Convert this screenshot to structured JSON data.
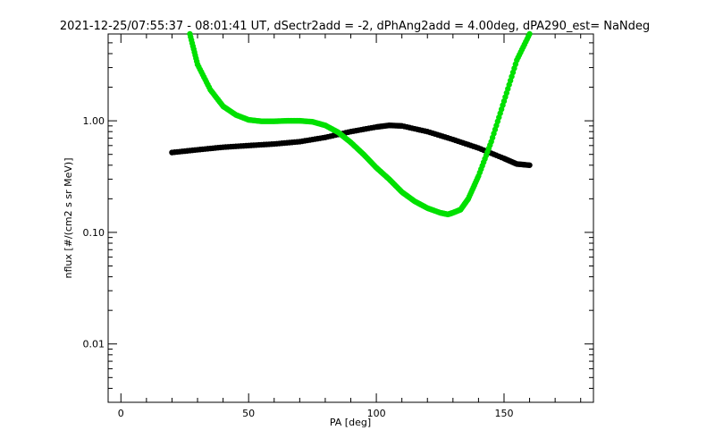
{
  "chart_data": {
    "type": "scatter",
    "title": "2021-12-25/07:55:37 - 08:01:41 UT, dSectr2add = -2, dPhAng2add = 4.00deg, dPA290_est=   NaNdeg",
    "xlabel": "PA [deg]",
    "ylabel": "nflux [#/(cm2 s sr MeV)]",
    "xlim": [
      -5,
      185
    ],
    "ylim": [
      0.003,
      6
    ],
    "yscale": "log",
    "grid": false,
    "x_ticks": [
      0,
      50,
      100,
      150
    ],
    "x_tick_labels": [
      "0",
      "50",
      "100",
      "150"
    ],
    "y_ticks": [
      0.01,
      0.1,
      1.0
    ],
    "y_tick_labels": [
      "0.01",
      "0.10",
      "1.00"
    ],
    "series": [
      {
        "color": "#000000",
        "x": [
          20,
          30,
          40,
          50,
          60,
          70,
          80,
          90,
          100,
          105,
          110,
          120,
          130,
          140,
          150,
          155,
          160
        ],
        "y": [
          0.52,
          0.55,
          0.58,
          0.6,
          0.62,
          0.65,
          0.71,
          0.8,
          0.88,
          0.91,
          0.9,
          0.8,
          0.68,
          0.57,
          0.46,
          0.41,
          0.4
        ]
      },
      {
        "color": "#00e000",
        "x": [
          27,
          30,
          35,
          40,
          45,
          50,
          55,
          60,
          65,
          70,
          75,
          80,
          85,
          90,
          95,
          100,
          105,
          110,
          115,
          120,
          125,
          128,
          130,
          133,
          136,
          140,
          145,
          150,
          155,
          160
        ],
        "y": [
          6,
          3.2,
          1.9,
          1.35,
          1.13,
          1.02,
          0.99,
          0.99,
          1.0,
          1.0,
          0.98,
          0.91,
          0.79,
          0.64,
          0.5,
          0.38,
          0.3,
          0.23,
          0.19,
          0.165,
          0.15,
          0.145,
          0.15,
          0.16,
          0.2,
          0.32,
          0.65,
          1.5,
          3.5,
          6
        ]
      }
    ]
  }
}
